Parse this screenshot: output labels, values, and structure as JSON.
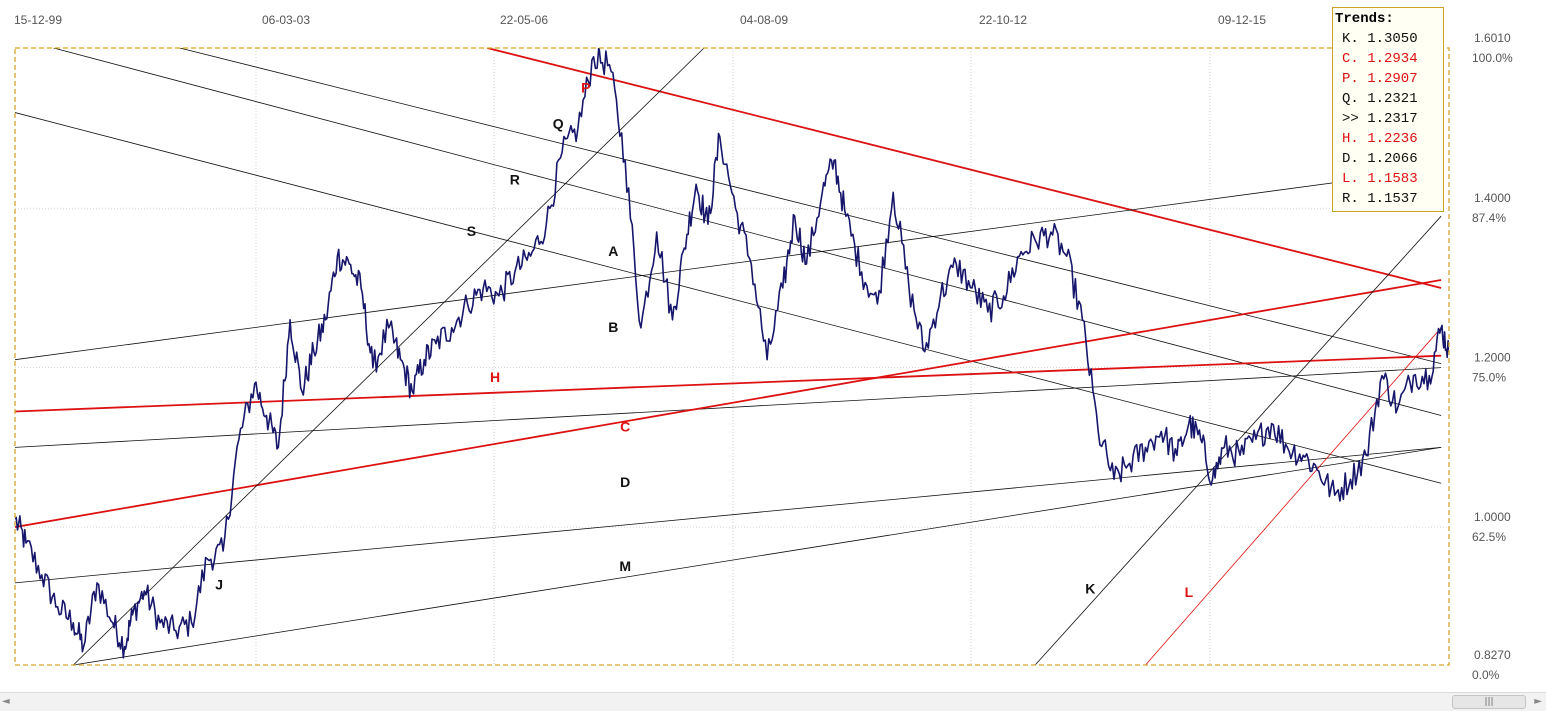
{
  "chart_data": {
    "type": "line",
    "x_ticks": [
      "15-12-99",
      "06-03-03",
      "22-05-06",
      "04-08-09",
      "22-10-12",
      "09-12-15"
    ],
    "y_ticks": [
      {
        "price": "1.6010",
        "pct": "100.0%"
      },
      {
        "price": "1.4000",
        "pct": "87.4%"
      },
      {
        "price": "1.2000",
        "pct": "75.0%"
      },
      {
        "price": "1.0000",
        "pct": "62.5%"
      },
      {
        "price": "0.8270",
        "pct": "0.0%"
      }
    ],
    "ylim": [
      0.827,
      1.601
    ],
    "grid": true,
    "series": [
      {
        "color": "#16166b",
        "x": [
          1999.96,
          2000.1,
          2000.3,
          2000.5,
          2000.7,
          2000.83,
          2001.0,
          2001.2,
          2001.35,
          2001.45,
          2001.6,
          2001.8,
          2002.0,
          2002.2,
          2002.4,
          2002.6,
          2002.8,
          2003.0,
          2003.15,
          2003.3,
          2003.45,
          2003.6,
          2003.75,
          2003.9,
          2004.05,
          2004.2,
          2004.35,
          2004.5,
          2004.7,
          2004.85,
          2005.0,
          2005.15,
          2005.3,
          2005.5,
          2005.7,
          2005.9,
          2006.1,
          2006.3,
          2006.5,
          2006.7,
          2006.9,
          2007.1,
          2007.3,
          2007.5,
          2007.7,
          2007.9,
          2008.1,
          2008.3,
          2008.45,
          2008.6,
          2008.75,
          2008.9,
          2009.1,
          2009.3,
          2009.5,
          2009.7,
          2009.85,
          2010.0,
          2010.2,
          2010.35,
          2010.5,
          2010.7,
          2010.9,
          2011.1,
          2011.3,
          2011.5,
          2011.7,
          2011.9,
          2012.1,
          2012.3,
          2012.5,
          2012.7,
          2012.9,
          2013.1,
          2013.3,
          2013.5,
          2013.7,
          2013.9,
          2014.1,
          2014.3,
          2014.5,
          2014.7,
          2014.85,
          2015.0,
          2015.15,
          2015.3,
          2015.5,
          2015.7,
          2015.9,
          2016.1,
          2016.3,
          2016.5,
          2016.7,
          2016.9,
          2017.1,
          2017.3,
          2017.5,
          2017.7,
          2017.9,
          2018.05,
          2018.15
        ],
        "y": [
          1.01,
          0.98,
          0.94,
          0.9,
          0.88,
          0.85,
          0.93,
          0.88,
          0.85,
          0.89,
          0.92,
          0.88,
          0.87,
          0.88,
          0.96,
          0.97,
          1.11,
          1.18,
          1.14,
          1.1,
          1.26,
          1.17,
          1.22,
          1.26,
          1.34,
          1.33,
          1.3,
          1.2,
          1.25,
          1.21,
          1.17,
          1.21,
          1.23,
          1.25,
          1.28,
          1.3,
          1.29,
          1.32,
          1.34,
          1.38,
          1.47,
          1.5,
          1.59,
          1.58,
          1.46,
          1.25,
          1.37,
          1.26,
          1.35,
          1.43,
          1.38,
          1.49,
          1.4,
          1.33,
          1.21,
          1.3,
          1.39,
          1.33,
          1.42,
          1.46,
          1.39,
          1.32,
          1.28,
          1.42,
          1.3,
          1.22,
          1.29,
          1.33,
          1.3,
          1.27,
          1.29,
          1.34,
          1.36,
          1.37,
          1.34,
          1.26,
          1.12,
          1.06,
          1.08,
          1.1,
          1.12,
          1.09,
          1.13,
          1.11,
          1.06,
          1.1,
          1.09,
          1.11,
          1.13,
          1.1,
          1.09,
          1.07,
          1.04,
          1.06,
          1.09,
          1.19,
          1.15,
          1.19,
          1.19,
          1.25,
          1.22
        ]
      }
    ],
    "trend_lines": [
      {
        "label": "P",
        "color": "#dd1111",
        "width": 1.8,
        "p1": [
          2005.95,
          1.601
        ],
        "p2": [
          2018.05,
          1.3
        ]
      },
      {
        "label": "Q",
        "color": "#111111",
        "width": 0.8,
        "p1": [
          2002.05,
          1.601
        ],
        "p2": [
          2018.05,
          1.205
        ]
      },
      {
        "label": "R",
        "color": "#111111",
        "width": 0.8,
        "p1": [
          2000.45,
          1.601
        ],
        "p2": [
          2018.05,
          1.14
        ]
      },
      {
        "label": "S",
        "color": "#111111",
        "width": 0.8,
        "p1": [
          1999.96,
          1.52
        ],
        "p2": [
          2018.05,
          1.055
        ]
      },
      {
        "label": "A",
        "color": "#111111",
        "width": 0.8,
        "p1": [
          1999.96,
          1.21
        ],
        "p2": [
          2018.05,
          1.45
        ]
      },
      {
        "label": "B",
        "color": "#111111",
        "width": 0.8,
        "p1": [
          1999.96,
          1.1
        ],
        "p2": [
          2018.05,
          1.2
        ]
      },
      {
        "label": "H",
        "color": "#dd1111",
        "width": 1.8,
        "p1": [
          1999.96,
          1.145
        ],
        "p2": [
          2018.05,
          1.215
        ]
      },
      {
        "label": "C",
        "color": "#dd1111",
        "width": 1.8,
        "p1": [
          1999.96,
          1.0
        ],
        "p2": [
          2018.05,
          1.31
        ]
      },
      {
        "label": "D",
        "color": "#111111",
        "width": 0.8,
        "p1": [
          1999.96,
          0.93
        ],
        "p2": [
          2018.05,
          1.1
        ]
      },
      {
        "label": "M",
        "color": "#111111",
        "width": 0.8,
        "p1": [
          2000.7,
          0.827
        ],
        "p2": [
          2018.05,
          1.1
        ]
      },
      {
        "label": "J",
        "color": "#111111",
        "width": 0.8,
        "p1": [
          2000.7,
          0.827
        ],
        "p2": [
          2008.7,
          1.601
        ]
      },
      {
        "label": "K",
        "color": "#111111",
        "width": 0.8,
        "p1": [
          2012.9,
          0.827
        ],
        "p2": [
          2018.05,
          1.39
        ]
      },
      {
        "label": "L",
        "color": "#dd1111",
        "width": 0.8,
        "p1": [
          2014.3,
          0.827
        ],
        "p2": [
          2018.05,
          1.25
        ]
      }
    ],
    "line_labels": [
      {
        "text": "P",
        "color": "#dd1111",
        "x": 2007.2,
        "y": 1.545
      },
      {
        "text": "Q",
        "color": "#111111",
        "x": 2006.85,
        "y": 1.5
      },
      {
        "text": "R",
        "color": "#111111",
        "x": 2006.3,
        "y": 1.43
      },
      {
        "text": "S",
        "color": "#111111",
        "x": 2005.75,
        "y": 1.365
      },
      {
        "text": "A",
        "color": "#111111",
        "x": 2007.55,
        "y": 1.34
      },
      {
        "text": "B",
        "color": "#111111",
        "x": 2007.55,
        "y": 1.245
      },
      {
        "text": "H",
        "color": "#dd1111",
        "x": 2006.05,
        "y": 1.182
      },
      {
        "text": "C",
        "color": "#dd1111",
        "x": 2007.7,
        "y": 1.12
      },
      {
        "text": "D",
        "color": "#111111",
        "x": 2007.7,
        "y": 1.05
      },
      {
        "text": "M",
        "color": "#111111",
        "x": 2007.7,
        "y": 0.945
      },
      {
        "text": "J",
        "color": "#111111",
        "x": 2002.55,
        "y": 0.922
      },
      {
        "text": "K",
        "color": "#111111",
        "x": 2013.6,
        "y": 0.917
      },
      {
        "text": "L",
        "color": "#dd1111",
        "x": 2014.85,
        "y": 0.912
      }
    ]
  },
  "legend": {
    "title": "Trends:",
    "items": [
      {
        "text": "K. 1.3050",
        "color": "#111111"
      },
      {
        "text": "C. 1.2934",
        "color": "#dd1111"
      },
      {
        "text": "P. 1.2907",
        "color": "#dd1111"
      },
      {
        "text": "Q. 1.2321",
        "color": "#111111"
      },
      {
        "text": ">> 1.2317",
        "color": "#111111"
      },
      {
        "text": "H. 1.2236",
        "color": "#dd1111"
      },
      {
        "text": "D. 1.2066",
        "color": "#111111"
      },
      {
        "text": "L. 1.1583",
        "color": "#dd1111"
      },
      {
        "text": "R. 1.1537",
        "color": "#111111"
      }
    ]
  },
  "scrollbar": {
    "thumb_glyph": "|||",
    "left_arrow": "◄",
    "right_arrow": "►"
  }
}
